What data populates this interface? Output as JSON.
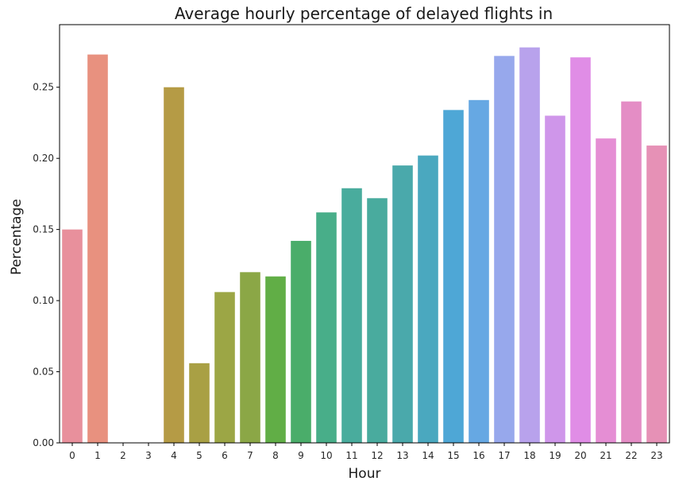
{
  "chart_data": {
    "type": "bar",
    "title": "Average hourly percentage of delayed flights in",
    "xlabel": "Hour",
    "ylabel": "Percentage",
    "categories": [
      "0",
      "1",
      "2",
      "3",
      "4",
      "5",
      "6",
      "7",
      "8",
      "9",
      "10",
      "11",
      "12",
      "13",
      "14",
      "15",
      "16",
      "17",
      "18",
      "19",
      "20",
      "21",
      "22",
      "23"
    ],
    "values": [
      0.15,
      0.273,
      0.0,
      0.0,
      0.25,
      0.056,
      0.106,
      0.12,
      0.117,
      0.142,
      0.162,
      0.179,
      0.172,
      0.195,
      0.202,
      0.234,
      0.241,
      0.272,
      0.278,
      0.23,
      0.271,
      0.214,
      0.24,
      0.209
    ],
    "colors": [
      "#e8909c",
      "#e8917f",
      "#d79a5c",
      "#c6a04b",
      "#b59b45",
      "#a9a044",
      "#9ca645",
      "#8ba746",
      "#61ae46",
      "#4aad6a",
      "#48ae89",
      "#49ac9d",
      "#49ab9e",
      "#4aa9ab",
      "#4aa8bf",
      "#4ea7d6",
      "#66a8e3",
      "#97a8ec",
      "#b8a2ec",
      "#cf96ea",
      "#e08de6",
      "#e58ed4",
      "#e48dc5",
      "#e691b6"
    ],
    "ylim": [
      0,
      0.294
    ],
    "yticks": [
      "0.00",
      "0.05",
      "0.10",
      "0.15",
      "0.20",
      "0.25"
    ],
    "ytick_values": [
      0,
      0.05,
      0.1,
      0.15,
      0.2,
      0.25
    ],
    "grid": false,
    "legend": "none"
  }
}
